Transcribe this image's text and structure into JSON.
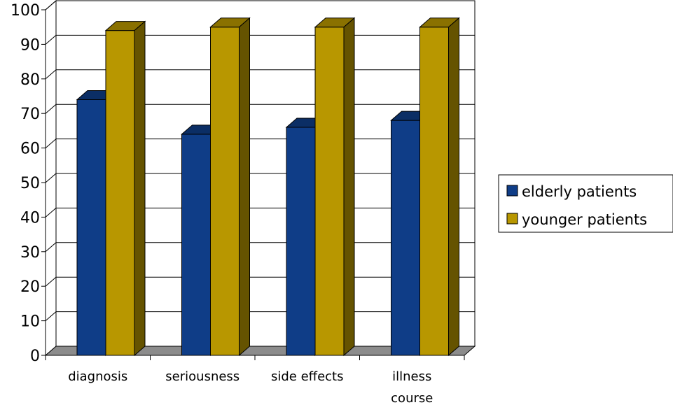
{
  "chart_data": {
    "type": "bar",
    "categories": [
      [
        "diagnosis"
      ],
      [
        "seriousness"
      ],
      [
        "side effects"
      ],
      [
        "illness",
        "course"
      ]
    ],
    "series": [
      {
        "name": "elderly patients",
        "values": [
          74,
          64,
          66,
          68
        ],
        "color": "#0F3D87"
      },
      {
        "name": "younger patients",
        "values": [
          94,
          95,
          95,
          95
        ],
        "color": "#B89700"
      }
    ],
    "ylim": [
      0,
      100
    ],
    "yticks": [
      0,
      10,
      20,
      30,
      40,
      50,
      60,
      70,
      80,
      90,
      100
    ],
    "grid": true,
    "legend_position": "right",
    "three_d": true
  }
}
